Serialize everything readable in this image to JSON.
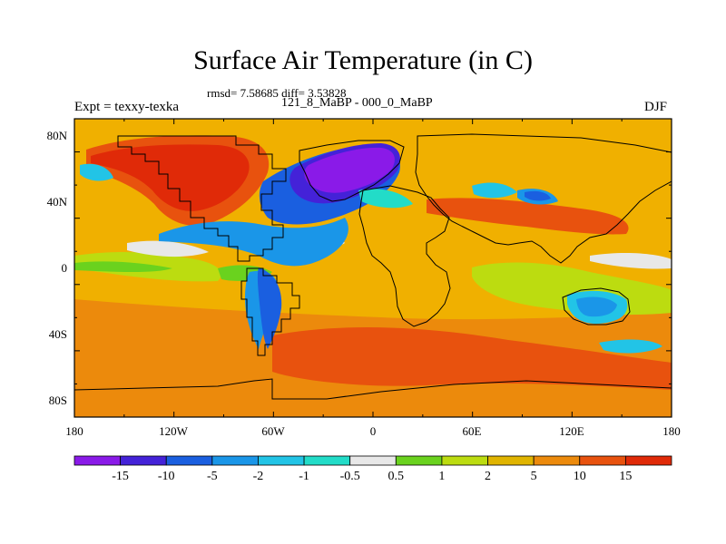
{
  "title": "Surface Air Temperature (in C)",
  "stats": "rmsd= 7.58685 diff= 3.53828",
  "subtitle": "121_8_MaBP - 000_0_MaBP",
  "experiment": "Expt = texxy-texka",
  "season": "DJF",
  "lat_labels": [
    "80N",
    "40N",
    "0",
    "40S",
    "80S"
  ],
  "lon_labels": [
    "180",
    "120W",
    "60W",
    "0",
    "60E",
    "120E",
    "180"
  ],
  "colorbar": {
    "labels": [
      "-15",
      "-10",
      "-5",
      "-2",
      "-1",
      "-0.5",
      "0.5",
      "1",
      "2",
      "5",
      "10",
      "15"
    ],
    "colors": [
      "#8a1ae8",
      "#4422d8",
      "#1a5fe0",
      "#1a96e8",
      "#22c4e6",
      "#22dcc8",
      "#e8e8e8",
      "#6ad21e",
      "#bcdc10",
      "#e0b400",
      "#ec8a0c",
      "#e8520e",
      "#e02a08"
    ]
  },
  "map_colors": {
    "ocean_base": "#f0b000",
    "warm": "#ec8a0c",
    "hot": "#e8520e",
    "hottest": "#e02a08",
    "yellowgreen": "#bcdc10",
    "green": "#6ad21e",
    "white": "#e8e8e8",
    "cyan": "#22dcc8",
    "lightblue": "#22c4e6",
    "skyblue": "#1a96e8",
    "blue": "#1a5fe0",
    "indigo": "#4422d8",
    "purple": "#8a1ae8"
  }
}
